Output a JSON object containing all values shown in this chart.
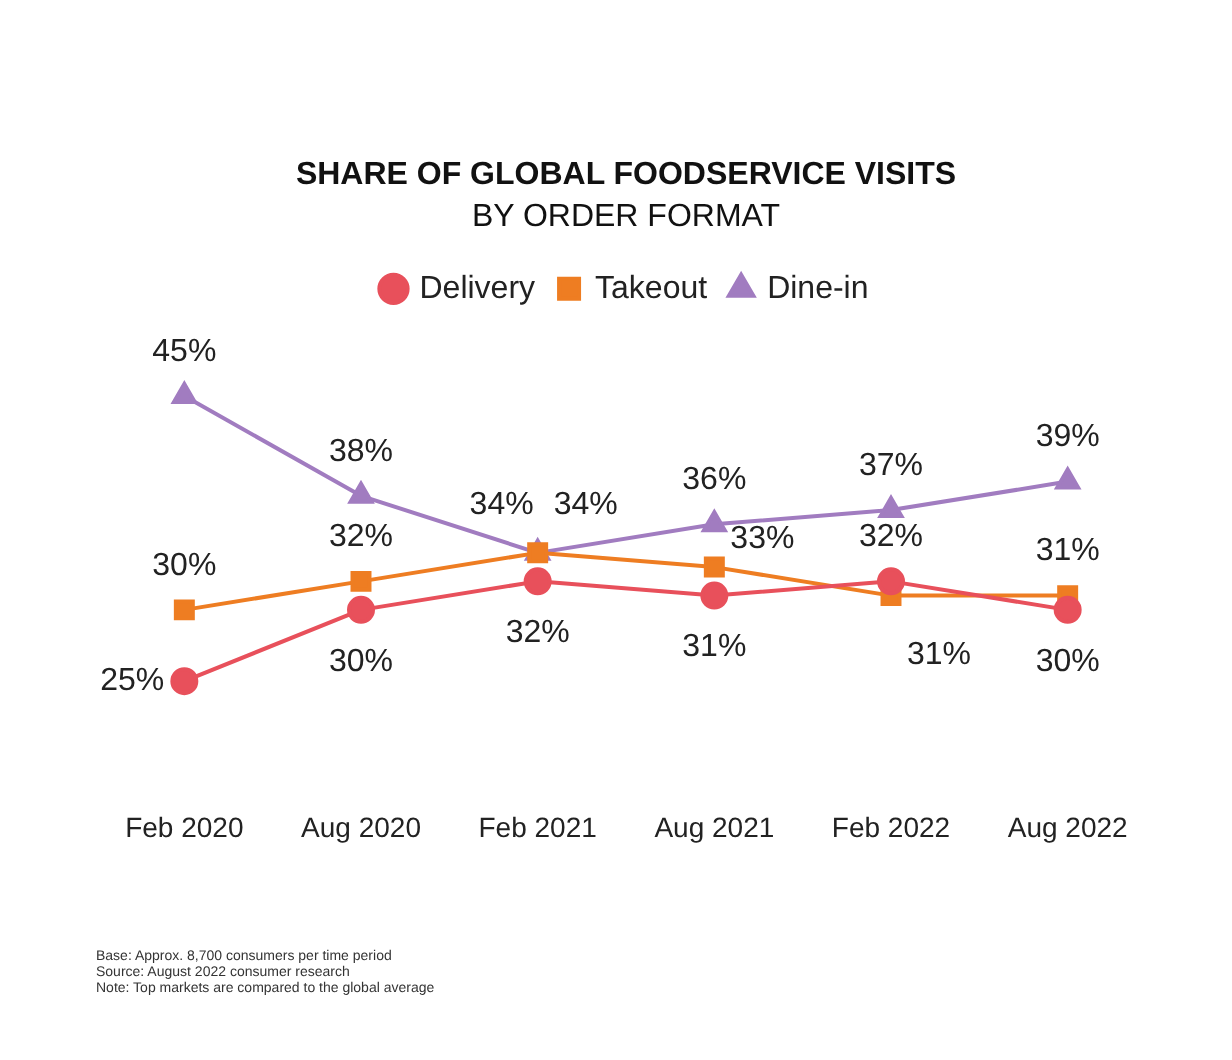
{
  "chart_data": {
    "type": "line",
    "title": "SHARE OF GLOBAL FOODSERVICE VISITS",
    "subtitle": "BY ORDER FORMAT",
    "categories": [
      "Feb 2020",
      "Aug 2020",
      "Feb 2021",
      "Aug 2021",
      "Feb 2022",
      "Aug 2022"
    ],
    "series": [
      {
        "name": "Delivery",
        "color": "#e8505b",
        "marker": "circle",
        "values": [
          25,
          30,
          32,
          31,
          32,
          30
        ],
        "value_labels": [
          "25%",
          "30%",
          "32%",
          "31%",
          "32%",
          "30%"
        ]
      },
      {
        "name": "Takeout",
        "color": "#ee7d22",
        "marker": "square",
        "values": [
          30,
          32,
          34,
          33,
          31,
          31
        ],
        "value_labels": [
          "30%",
          "32%",
          "34%",
          "33%",
          "31%",
          "31%"
        ]
      },
      {
        "name": "Dine-in",
        "color": "#a17cc0",
        "marker": "triangle",
        "values": [
          45,
          38,
          34,
          36,
          37,
          39
        ],
        "value_labels": [
          "45%",
          "38%",
          "34%",
          "36%",
          "37%",
          "39%"
        ]
      }
    ],
    "tick_labels": "x",
    "grid": false,
    "legend": "top",
    "annotations": [
      "Base: Approx. 8,700 consumers per time period",
      "Source: August 2022 consumer research",
      "Note: Top markets are compared to the global average"
    ]
  }
}
